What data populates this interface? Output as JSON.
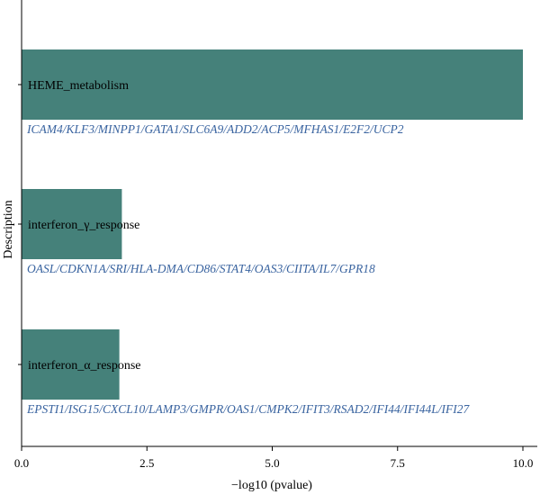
{
  "chart_data": {
    "type": "bar",
    "orientation": "horizontal",
    "xlabel": "−log10 (pvalue)",
    "ylabel": "Description",
    "xlim": [
      0,
      10.0
    ],
    "xticks": [
      "0.0",
      "2.5",
      "5.0",
      "7.5",
      "10.0"
    ],
    "categories": [
      "HEME_metabolism",
      "interferon_γ_response",
      "interferon_α_response"
    ],
    "values": [
      10.0,
      2.0,
      1.95
    ],
    "gene_lists": [
      "ICAM4/KLF3/MINPP1/GATA1/SLC6A9/ADD2/ACP5/MFHAS1/E2F2/UCP2",
      "OASL/CDKN1A/SRI/HLA-DMA/CD86/STAT4/OAS3/CIITA/IL7/GPR18",
      "EPSTI1/ISG15/CXCL10/LAMP3/GMPR/OAS1/CMPK2/IFIT3/RSAD2/IFI44/IFI44L/IFI27"
    ],
    "bar_color": "#45817a",
    "gene_text_color": "#3a64a0",
    "grid": false
  }
}
